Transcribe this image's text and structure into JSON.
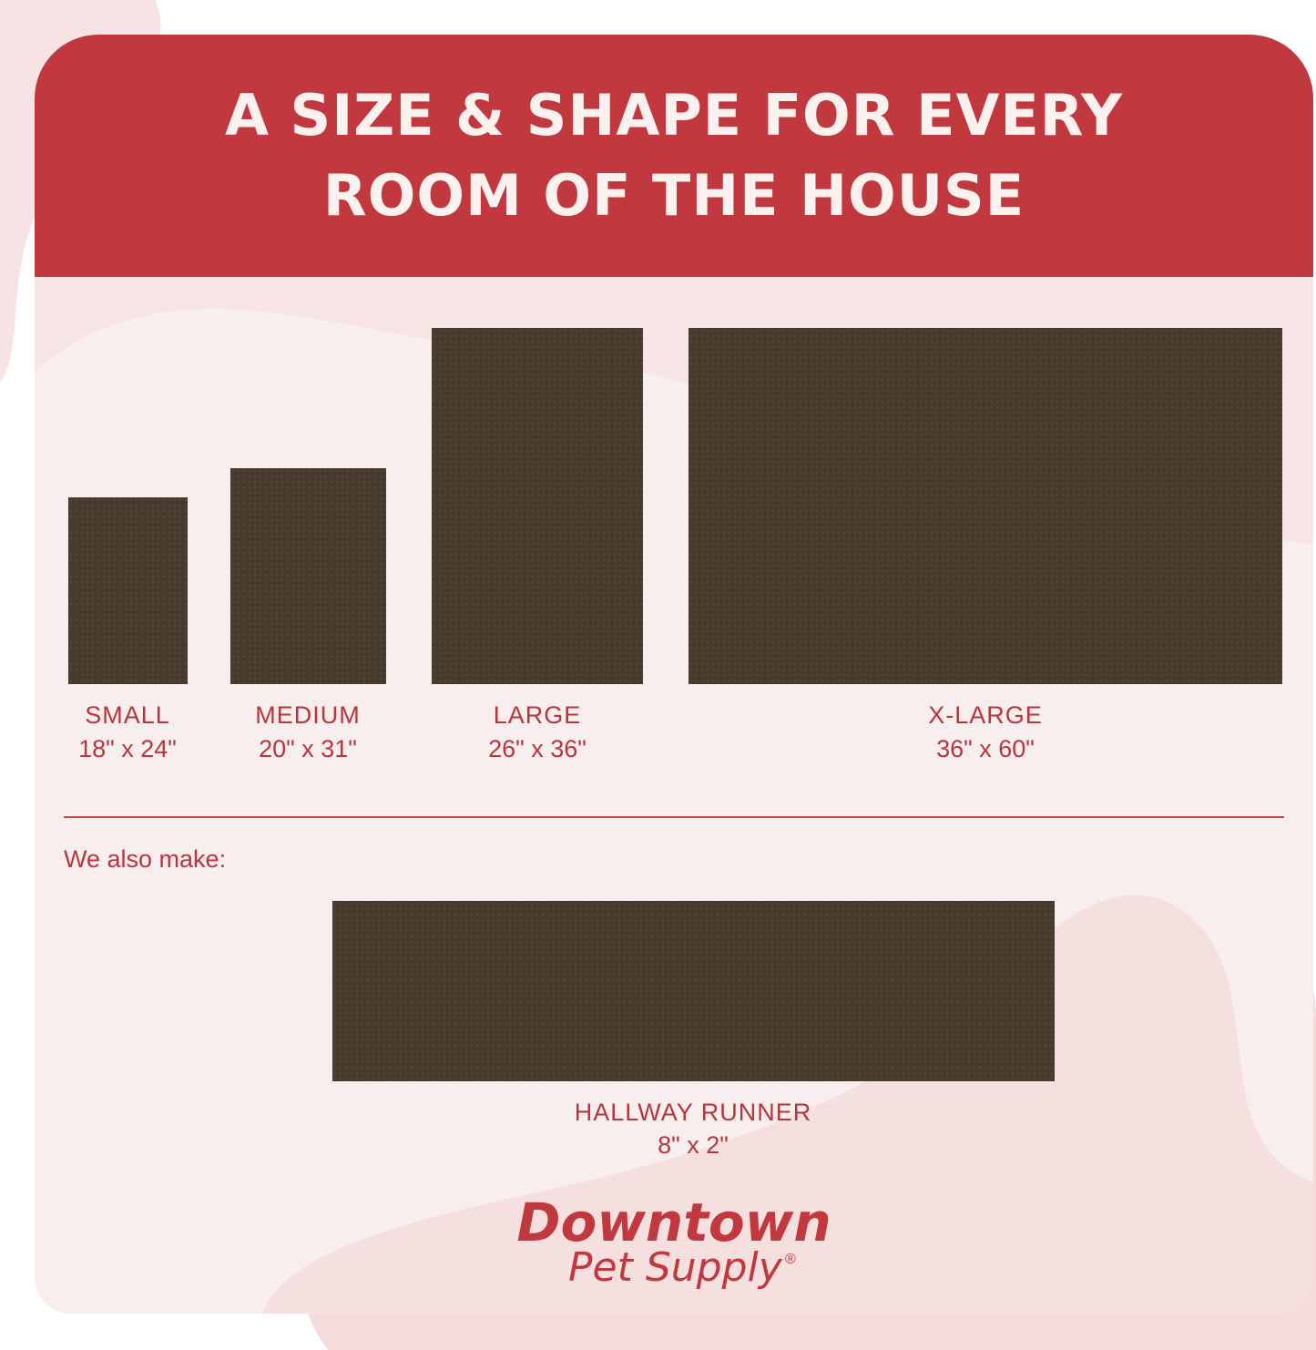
{
  "header": {
    "title_line1": "A SIZE & SHAPE FOR EVERY",
    "title_line2": "ROOM OF THE HOUSE"
  },
  "sizes": [
    {
      "name": "SMALL",
      "dimensions": "18\" x 24\""
    },
    {
      "name": "MEDIUM",
      "dimensions": "20\" x 31\""
    },
    {
      "name": "LARGE",
      "dimensions": "26\" x 36\""
    },
    {
      "name": "X-LARGE",
      "dimensions": "36\" x 60\""
    }
  ],
  "also": {
    "label": "We also make:",
    "name": "HALLWAY RUNNER",
    "dimensions": "8\" x 2\""
  },
  "brand": {
    "line1": "Downtown",
    "line2": "Pet Supply",
    "mark": "®"
  },
  "colors": {
    "accent": "#c1393e",
    "mat": "#463a2c",
    "background": "#f7e4e4"
  }
}
